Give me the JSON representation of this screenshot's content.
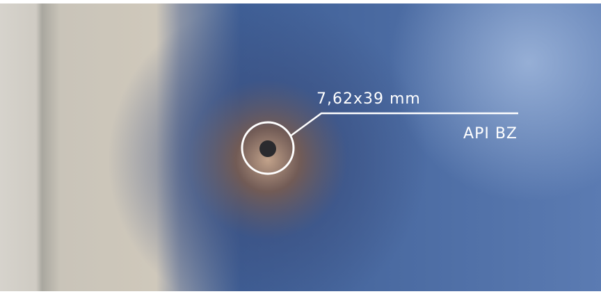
{
  "annotation": {
    "caliber": "7,62x39 mm",
    "ammunition": "API BZ"
  }
}
